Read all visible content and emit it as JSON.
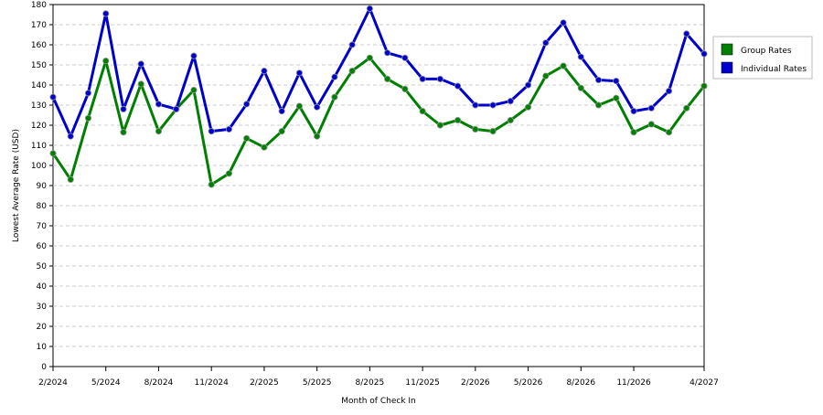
{
  "chart_data": {
    "type": "line",
    "xlabel": "Month of Check In",
    "ylabel": "Lowest Average Rate (USD)",
    "categories": [
      "2/2024",
      null,
      null,
      "5/2024",
      null,
      null,
      "8/2024",
      null,
      null,
      "11/2024",
      null,
      null,
      "2/2025",
      null,
      null,
      "5/2025",
      null,
      null,
      "8/2025",
      null,
      null,
      "11/2025",
      null,
      null,
      "2/2026",
      null,
      null,
      "5/2026",
      null,
      null,
      "8/2026",
      null,
      null,
      "11/2026",
      null,
      null,
      null,
      "4/2027"
    ],
    "series": [
      {
        "name": "Group Rates",
        "color": "#008000",
        "values": [
          106,
          93,
          123.5,
          152,
          116.5,
          140.5,
          117,
          128,
          137.5,
          90.5,
          96,
          113.5,
          109,
          117,
          129.5,
          114.5,
          134,
          147,
          153.5,
          143,
          138,
          127,
          120,
          122.5,
          118,
          117,
          122.5,
          129,
          144.5,
          149.5,
          138.5,
          130,
          133.5,
          116.5,
          120.5,
          116.5,
          128.5,
          139.5
        ]
      },
      {
        "name": "Individual Rates",
        "color": "#0000cc",
        "values": [
          134,
          114.5,
          136,
          175.5,
          128,
          150.5,
          130.5,
          128,
          154.5,
          117,
          118,
          130.5,
          147,
          127,
          146,
          129,
          144,
          160,
          178,
          156,
          153.5,
          143,
          143,
          139.5,
          130,
          130,
          132,
          140,
          161,
          171,
          154,
          142.5,
          142,
          127,
          128.5,
          137,
          165.5,
          155.5
        ]
      }
    ],
    "ylim": [
      0,
      180
    ],
    "yticks": [
      0,
      10,
      20,
      30,
      40,
      50,
      60,
      70,
      80,
      90,
      100,
      110,
      120,
      130,
      140,
      150,
      160,
      170,
      180
    ],
    "grid": true,
    "legend": "right"
  }
}
